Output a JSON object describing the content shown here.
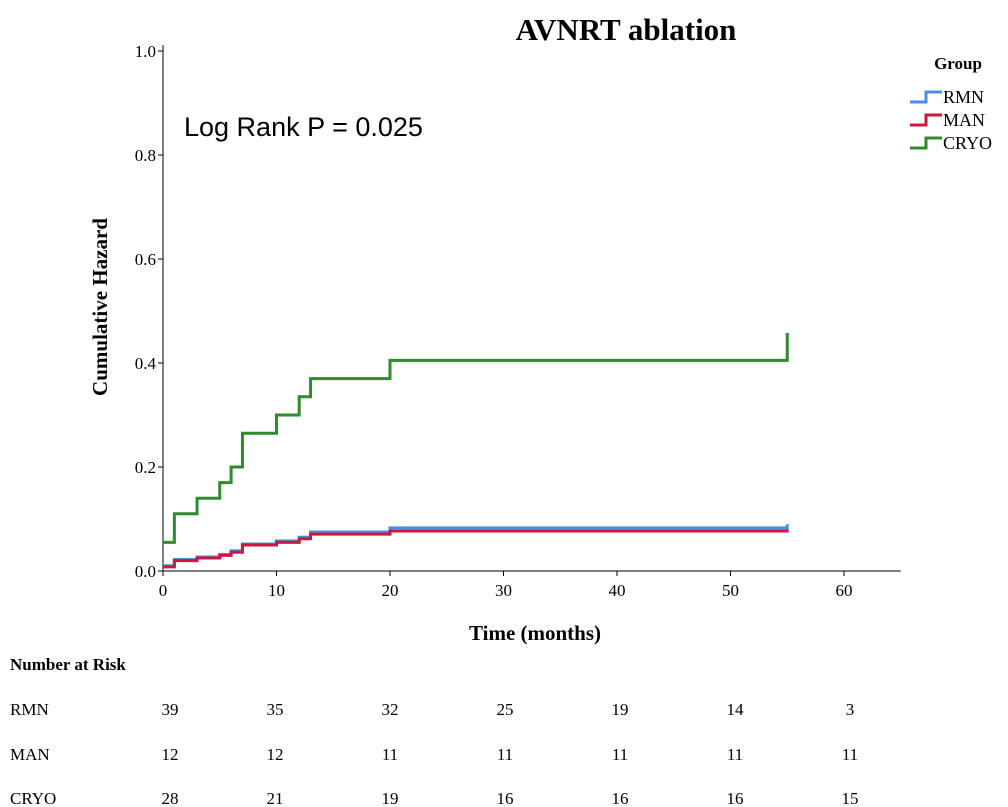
{
  "chart_data": {
    "type": "line",
    "title": "AVNRT ablation",
    "xlabel": "Time (months)",
    "ylabel": "Cumulative Hazard",
    "xlim": [
      0,
      65
    ],
    "ylim": [
      0,
      1.0
    ],
    "x_ticks": [
      0,
      10,
      20,
      30,
      40,
      50,
      60
    ],
    "y_ticks": [
      "0.0",
      "0.2",
      "0.4",
      "0.6",
      "0.8",
      "1.0"
    ],
    "annotation": "Log Rank P = 0.025",
    "legend": {
      "title": "Group",
      "position": "top-right"
    },
    "grid": false,
    "step": true,
    "series": [
      {
        "name": "RMN",
        "color": "#4a90e2",
        "points": [
          [
            0,
            0.01
          ],
          [
            1,
            0.022
          ],
          [
            3,
            0.027
          ],
          [
            5,
            0.032
          ],
          [
            6,
            0.039
          ],
          [
            7,
            0.052
          ],
          [
            10,
            0.058
          ],
          [
            12,
            0.065
          ],
          [
            13,
            0.075
          ],
          [
            20,
            0.083
          ],
          [
            55,
            0.083
          ],
          [
            55,
            0.09
          ]
        ]
      },
      {
        "name": "MAN",
        "color": "#d0163c",
        "points": [
          [
            0,
            0.008
          ],
          [
            1,
            0.02
          ],
          [
            3,
            0.025
          ],
          [
            5,
            0.03
          ],
          [
            6,
            0.036
          ],
          [
            7,
            0.05
          ],
          [
            10,
            0.055
          ],
          [
            12,
            0.062
          ],
          [
            13,
            0.071
          ],
          [
            20,
            0.077
          ],
          [
            55,
            0.077
          ],
          [
            55,
            0.08
          ]
        ]
      },
      {
        "name": "CRYO",
        "color": "#2e8b2e",
        "points": [
          [
            0,
            0.055
          ],
          [
            1,
            0.11
          ],
          [
            3,
            0.14
          ],
          [
            5,
            0.17
          ],
          [
            6,
            0.2
          ],
          [
            7,
            0.265
          ],
          [
            10,
            0.3
          ],
          [
            12,
            0.335
          ],
          [
            13,
            0.37
          ],
          [
            20,
            0.405
          ],
          [
            55,
            0.405
          ],
          [
            55,
            0.458
          ]
        ]
      }
    ]
  },
  "risk_table": {
    "heading": "Number at Risk",
    "rows": [
      {
        "label": "RMN",
        "values": [
          "39",
          "35",
          "32",
          "25",
          "19",
          "14",
          "3"
        ]
      },
      {
        "label": "MAN",
        "values": [
          "12",
          "12",
          "11",
          "11",
          "11",
          "11",
          "11"
        ]
      },
      {
        "label": "CRYO",
        "values": [
          "28",
          "21",
          "19",
          "16",
          "16",
          "16",
          "15"
        ]
      }
    ]
  }
}
